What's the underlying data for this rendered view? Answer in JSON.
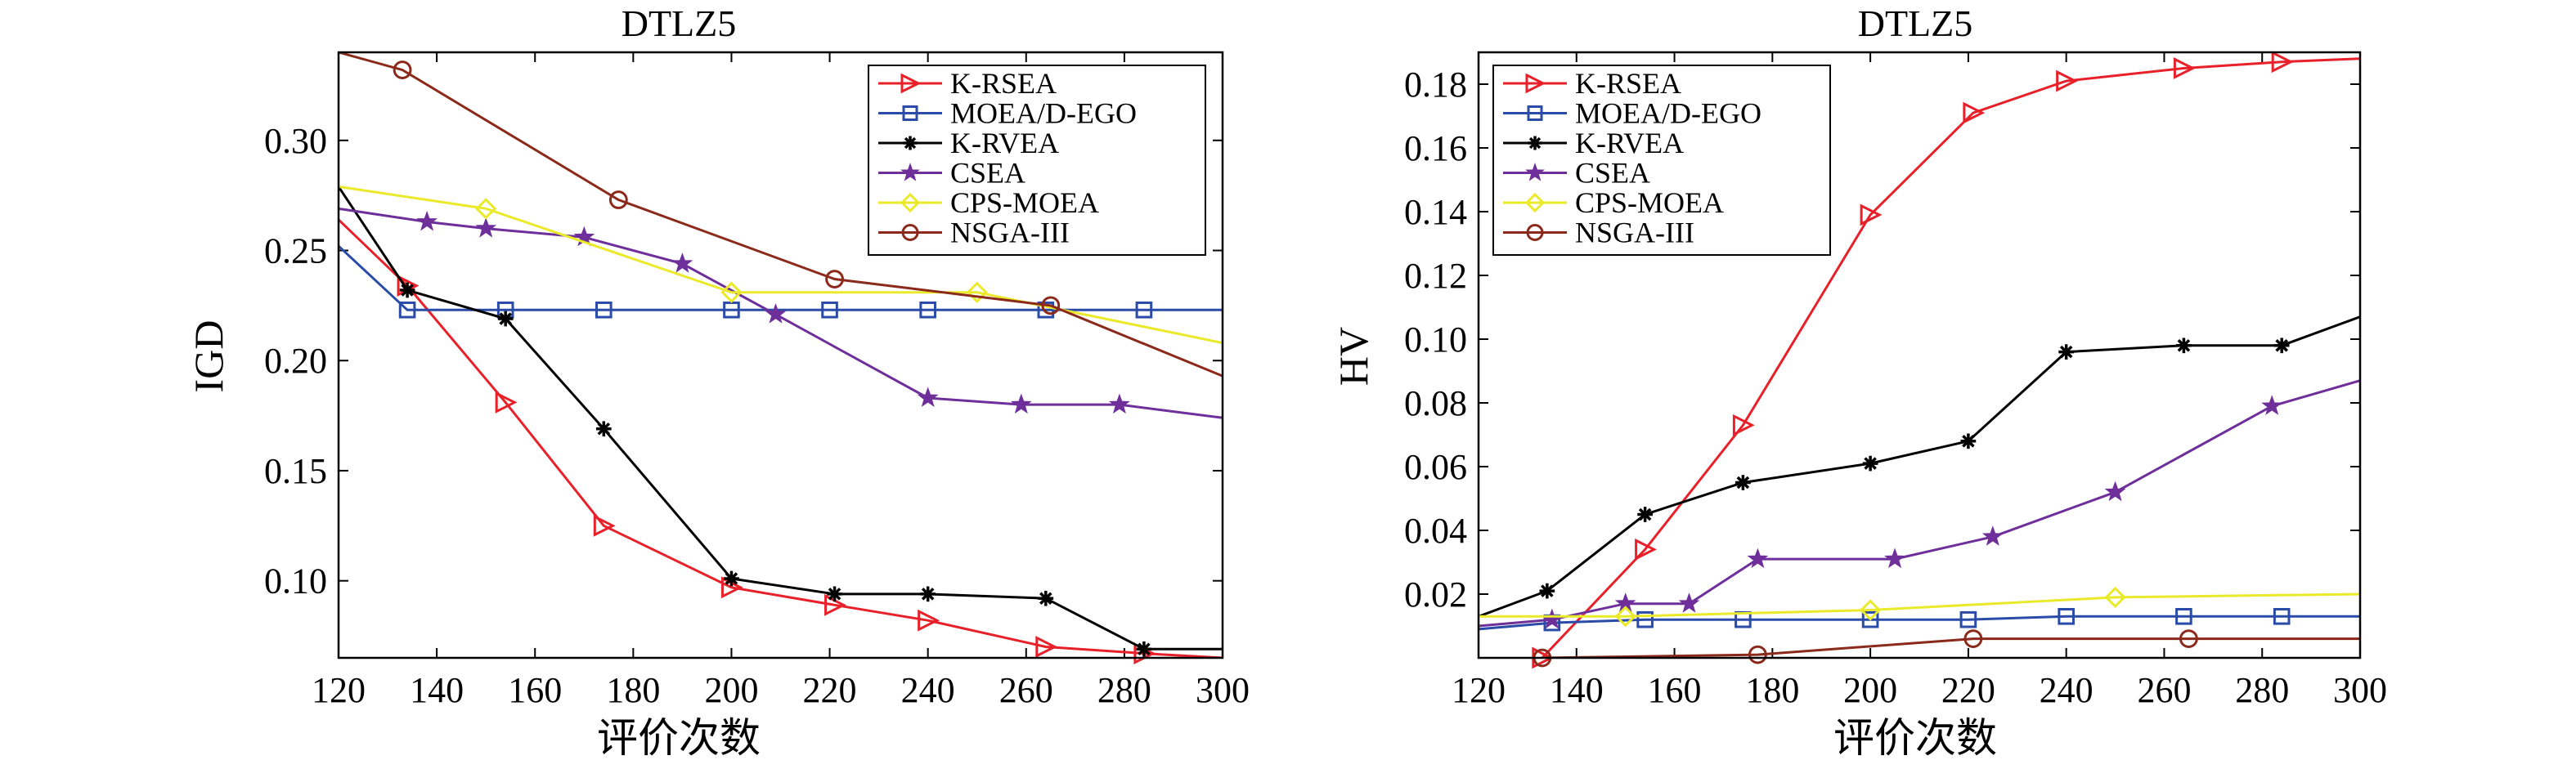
{
  "chart_data": [
    {
      "type": "line",
      "title": "DTLZ5",
      "xlabel": "评价次数",
      "ylabel": "IGD",
      "xlim": [
        120,
        300
      ],
      "ylim": [
        0.065,
        0.34
      ],
      "xticks": [
        120,
        140,
        160,
        180,
        200,
        220,
        240,
        260,
        280,
        300
      ],
      "xtick_labels": [
        "120",
        "140",
        "160",
        "180",
        "200",
        "220",
        "240",
        "260",
        "280",
        "300"
      ],
      "yticks": [
        0.1,
        0.15,
        0.2,
        0.25,
        0.3
      ],
      "ytick_labels": [
        "0.10",
        "0.15",
        "0.20",
        "0.25",
        "0.30"
      ],
      "legend_position": "top-right",
      "series": [
        {
          "name": "K-RSEA",
          "color": "#e8202a",
          "marker": "triangle-right",
          "x": [
            120,
            134,
            154,
            174,
            200,
            221,
            240,
            264,
            284,
            300
          ],
          "y": [
            0.264,
            0.234,
            0.181,
            0.125,
            0.097,
            0.089,
            0.082,
            0.07,
            0.067,
            0.065
          ]
        },
        {
          "name": "MOEA/D-EGO",
          "color": "#2a4ba8",
          "marker": "square",
          "x": [
            120,
            134,
            154,
            174,
            200,
            220,
            240,
            264,
            284,
            300
          ],
          "y": [
            0.252,
            0.223,
            0.223,
            0.223,
            0.223,
            0.223,
            0.223,
            0.223,
            0.223,
            0.223
          ]
        },
        {
          "name": "K-RVEA",
          "color": "#000000",
          "marker": "asterisk",
          "x": [
            120,
            134,
            154,
            174,
            200,
            221,
            240,
            264,
            284,
            300
          ],
          "y": [
            0.279,
            0.232,
            0.219,
            0.169,
            0.101,
            0.094,
            0.094,
            0.092,
            0.069,
            0.069
          ]
        },
        {
          "name": "CSEA",
          "color": "#6e2f9a",
          "marker": "star",
          "x": [
            120,
            138,
            150,
            170,
            190,
            209,
            240,
            259,
            279,
            300
          ],
          "y": [
            0.269,
            0.263,
            0.26,
            0.256,
            0.244,
            0.221,
            0.183,
            0.18,
            0.18,
            0.174
          ]
        },
        {
          "name": "CPS-MOEA",
          "color": "#eaea2a",
          "marker": "diamond",
          "x": [
            120,
            150,
            200,
            250,
            300
          ],
          "y": [
            0.279,
            0.269,
            0.231,
            0.231,
            0.208
          ]
        },
        {
          "name": "NSGA-III",
          "color": "#8b2a1a",
          "marker": "circle",
          "x": [
            120,
            133,
            177,
            221,
            265,
            300
          ],
          "y": [
            0.34,
            0.332,
            0.273,
            0.237,
            0.225,
            0.193
          ]
        }
      ]
    },
    {
      "type": "line",
      "title": "DTLZ5",
      "xlabel": "评价次数",
      "ylabel": "HV",
      "xlim": [
        120,
        300
      ],
      "ylim": [
        0,
        0.19
      ],
      "xticks": [
        120,
        140,
        160,
        180,
        200,
        220,
        240,
        260,
        280,
        300
      ],
      "xtick_labels": [
        "120",
        "140",
        "160",
        "180",
        "200",
        "220",
        "240",
        "260",
        "280",
        "300"
      ],
      "yticks": [
        0.02,
        0.04,
        0.06,
        0.08,
        0.1,
        0.12,
        0.14,
        0.16,
        0.18
      ],
      "ytick_labels": [
        "0.02",
        "0.04",
        "0.06",
        "0.08",
        "0.10",
        "0.12",
        "0.14",
        "0.16",
        "0.18"
      ],
      "legend_position": "top-left",
      "series": [
        {
          "name": "K-RSEA",
          "color": "#e8202a",
          "marker": "triangle-right",
          "x": [
            133,
            154,
            174,
            200,
            221,
            240,
            264,
            284,
            300
          ],
          "y": [
            0.0,
            0.034,
            0.073,
            0.139,
            0.171,
            0.181,
            0.185,
            0.187,
            0.188
          ]
        },
        {
          "name": "MOEA/D-EGO",
          "color": "#2a4ba8",
          "marker": "square",
          "x": [
            120,
            135,
            154,
            174,
            200,
            220,
            240,
            264,
            284,
            300
          ],
          "y": [
            0.009,
            0.011,
            0.012,
            0.012,
            0.012,
            0.012,
            0.013,
            0.013,
            0.013,
            0.013
          ]
        },
        {
          "name": "K-RVEA",
          "color": "#000000",
          "marker": "asterisk",
          "x": [
            120,
            134,
            154,
            174,
            200,
            220,
            240,
            264,
            284,
            300
          ],
          "y": [
            0.013,
            0.021,
            0.045,
            0.055,
            0.061,
            0.068,
            0.096,
            0.098,
            0.098,
            0.107
          ]
        },
        {
          "name": "CSEA",
          "color": "#6e2f9a",
          "marker": "star",
          "x": [
            120,
            135,
            150,
            163,
            177,
            205,
            225,
            250,
            282,
            300
          ],
          "y": [
            0.01,
            0.012,
            0.017,
            0.017,
            0.031,
            0.031,
            0.038,
            0.052,
            0.079,
            0.087
          ]
        },
        {
          "name": "CPS-MOEA",
          "color": "#eaea2a",
          "marker": "diamond",
          "x": [
            120,
            150,
            200,
            250,
            300
          ],
          "y": [
            0.013,
            0.013,
            0.015,
            0.019,
            0.02
          ]
        },
        {
          "name": "NSGA-III",
          "color": "#8b2a1a",
          "marker": "circle",
          "x": [
            133,
            177,
            221,
            265,
            300
          ],
          "y": [
            0.0,
            0.001,
            0.006,
            0.006,
            0.006
          ]
        }
      ]
    }
  ]
}
